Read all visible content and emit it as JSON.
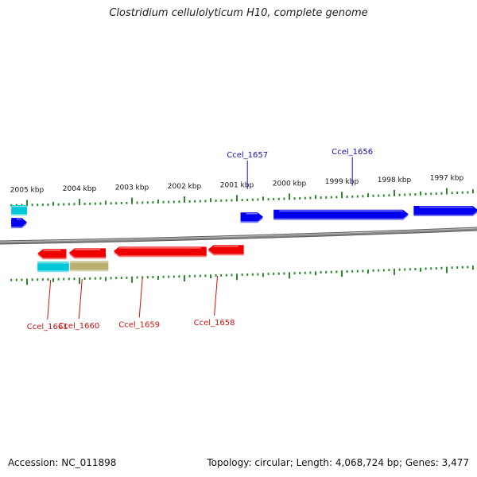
{
  "title": "Clostridium cellulolyticum H10, complete genome",
  "footer": {
    "accession": "Accession: NC_011898",
    "summary": "Topology: circular; Length: 4,068,724 bp; Genes: 3,477"
  },
  "colors": {
    "forward_gene": "#0000ee",
    "reverse_gene": "#ee0000",
    "rna_cyan": "#00c8d8",
    "misc_khaki": "#b8b070",
    "tick": "#2a8a2a",
    "backbone": "#888888",
    "forward_label": "#1010c0",
    "reverse_label": "#d01010",
    "axis_text": "#111111"
  },
  "chart_data": {
    "type": "genome-map",
    "unit": "kbp",
    "tick_labels": [
      "2005 kbp",
      "2004 kbp",
      "2003 kbp",
      "2002 kbp",
      "2001 kbp",
      "2000 kbp",
      "1999 kbp",
      "1998 kbp",
      "1997 kbp"
    ],
    "tick_values_kbp": [
      2005,
      2004,
      2003,
      2002,
      2001,
      2000,
      1999,
      1998,
      1997
    ],
    "view_range_kbp": [
      1996.4,
      2005.35
    ],
    "forward_features": [
      {
        "name": "",
        "start": 2005.3,
        "end": 2005.0,
        "color": "rna_cyan",
        "row": 1
      },
      {
        "name": "",
        "start": 2005.3,
        "end": 2005.0,
        "color": "forward_gene",
        "row": 0
      },
      {
        "name": "",
        "start": 2000.93,
        "end": 2000.5,
        "color": "forward_gene",
        "row": 0
      },
      {
        "name": "",
        "start": 2000.3,
        "end": 1997.73,
        "color": "forward_gene",
        "row": 0
      },
      {
        "name": "",
        "start": 1997.63,
        "end": 1996.4,
        "color": "forward_gene",
        "row": 0
      }
    ],
    "forward_labels": [
      {
        "name": "Ccel_1657",
        "at": 2000.8
      },
      {
        "name": "Ccel_1656",
        "at": 1998.8
      }
    ],
    "reverse_features": [
      {
        "name": "",
        "start": 2004.8,
        "end": 2004.25,
        "color": "reverse_gene",
        "row": 0
      },
      {
        "name": "",
        "start": 2004.2,
        "end": 2003.5,
        "color": "reverse_gene",
        "row": 0
      },
      {
        "name": "",
        "start": 2003.35,
        "end": 2001.58,
        "color": "reverse_gene",
        "row": 0
      },
      {
        "name": "",
        "start": 2001.55,
        "end": 2000.87,
        "color": "reverse_gene",
        "row": 0
      },
      {
        "name": "",
        "start": 2004.8,
        "end": 2004.2,
        "color": "rna_cyan",
        "row": 1
      },
      {
        "name": "",
        "start": 2004.18,
        "end": 2003.45,
        "color": "misc_khaki",
        "row": 1
      }
    ],
    "reverse_labels": [
      {
        "name": "Ccel_1661",
        "at": 2004.55
      },
      {
        "name": "Ccel_1660",
        "at": 2003.95
      },
      {
        "name": "Ccel_1659",
        "at": 2002.8
      },
      {
        "name": "Ccel_1658",
        "at": 2001.37
      }
    ]
  }
}
